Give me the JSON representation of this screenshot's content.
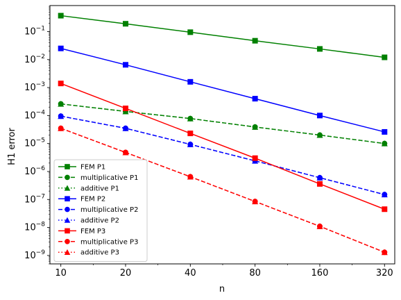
{
  "chart_data": {
    "type": "line",
    "xscale": "log2",
    "yscale": "log10",
    "x": [
      10,
      20,
      40,
      80,
      160,
      320
    ],
    "xticks": [
      "10",
      "20",
      "40",
      "80",
      "160",
      "320"
    ],
    "yticks": [
      {
        "value": 1e-09,
        "base": "10",
        "exp": "−9"
      },
      {
        "value": 1e-08,
        "base": "10",
        "exp": "−8"
      },
      {
        "value": 1e-07,
        "base": "10",
        "exp": "−7"
      },
      {
        "value": 1e-06,
        "base": "10",
        "exp": "−6"
      },
      {
        "value": 1e-05,
        "base": "10",
        "exp": "−5"
      },
      {
        "value": 0.0001,
        "base": "10",
        "exp": "−4"
      },
      {
        "value": 0.001,
        "base": "10",
        "exp": "−3"
      },
      {
        "value": 0.01,
        "base": "10",
        "exp": "−2"
      },
      {
        "value": 0.1,
        "base": "10",
        "exp": "−1"
      }
    ],
    "xlabel": "n",
    "ylabel": "H1 error",
    "xlim": [
      8.9,
      357
    ],
    "ylim": [
      5e-10,
      0.85
    ],
    "grid": false,
    "legend_position": "lower-left",
    "series": [
      {
        "name": "FEM P1",
        "color": "#008000",
        "dash": "solid",
        "marker": "square",
        "values": [
          0.37,
          0.19,
          0.095,
          0.047,
          0.024,
          0.012
        ]
      },
      {
        "name": "multiplicative P1",
        "color": "#008000",
        "dash": "dashed",
        "marker": "circle",
        "values": [
          0.00026,
          0.00014,
          7.8e-05,
          3.9e-05,
          2e-05,
          1e-05
        ]
      },
      {
        "name": "additive P1",
        "color": "#008000",
        "dash": "dotted",
        "marker": "triangle",
        "values": [
          0.00026,
          0.00014,
          7.8e-05,
          3.9e-05,
          2e-05,
          1e-05
        ]
      },
      {
        "name": "FEM P2",
        "color": "#0000ff",
        "dash": "solid",
        "marker": "square",
        "values": [
          0.025,
          0.0065,
          0.0016,
          0.0004,
          0.0001,
          2.6e-05
        ]
      },
      {
        "name": "multiplicative P2",
        "color": "#0000ff",
        "dash": "dashed",
        "marker": "circle",
        "values": [
          9.5e-05,
          3.5e-05,
          9.3e-06,
          2.4e-06,
          6e-07,
          1.5e-07
        ]
      },
      {
        "name": "additive P2",
        "color": "#0000ff",
        "dash": "dotted",
        "marker": "triangle",
        "values": [
          9.5e-05,
          3.5e-05,
          9.3e-06,
          2.4e-06,
          6e-07,
          1.5e-07
        ]
      },
      {
        "name": "FEM P3",
        "color": "#ff0000",
        "dash": "solid",
        "marker": "square",
        "values": [
          0.0014,
          0.00018,
          2.3e-05,
          3e-06,
          3.6e-07,
          4.5e-08
        ]
      },
      {
        "name": "multiplicative P3",
        "color": "#ff0000",
        "dash": "dashed",
        "marker": "circle",
        "values": [
          3.5e-05,
          4.8e-06,
          6.5e-07,
          8.5e-08,
          1.1e-08,
          1.3e-09
        ]
      },
      {
        "name": "additive P3",
        "color": "#ff0000",
        "dash": "dotted",
        "marker": "triangle",
        "values": [
          3.5e-05,
          4.8e-06,
          6.5e-07,
          8.5e-08,
          1.1e-08,
          1.3e-09
        ]
      }
    ]
  }
}
